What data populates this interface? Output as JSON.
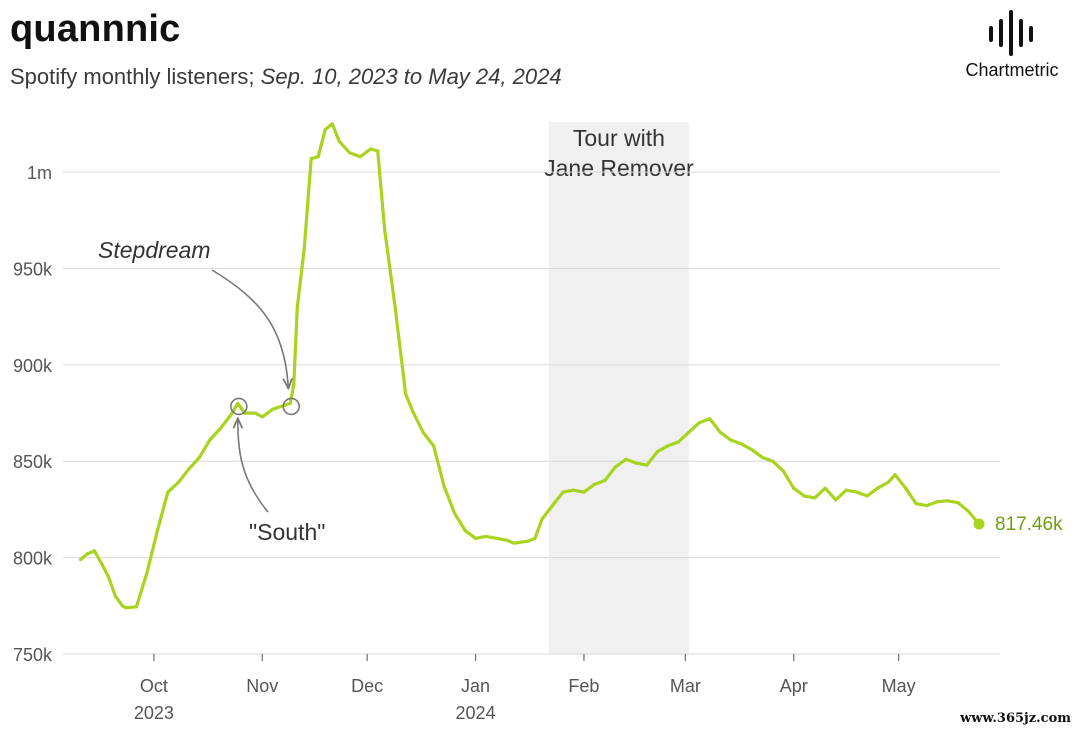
{
  "title": "quannnic",
  "subtitle_prefix": "Spotify monthly listeners; ",
  "subtitle_range": "Sep. 10, 2023 to May 24, 2024",
  "logo": {
    "text": "Chartmetric",
    "icon": "sound-bars-icon"
  },
  "watermark": "www.365jz.com",
  "colors": {
    "line": "#a8d31e",
    "end_label": "#6f9d12",
    "grid": "#d9d9d9",
    "band": "#f0f0f0",
    "annotation": "#777777",
    "tick_text": "#555555"
  },
  "chart_data": {
    "type": "line",
    "title": "quannnic",
    "subtitle": "Spotify monthly listeners; Sep. 10, 2023 to May 24, 2024",
    "xlabel": "",
    "ylabel": "",
    "ylim": [
      750000,
      1026000
    ],
    "xlim": [
      "2023-09-05",
      "2024-05-30"
    ],
    "grid": true,
    "y_ticks": [
      {
        "value": 750000,
        "label": "750k"
      },
      {
        "value": 800000,
        "label": "800k"
      },
      {
        "value": 850000,
        "label": "850k"
      },
      {
        "value": 900000,
        "label": "900k"
      },
      {
        "value": 950000,
        "label": "950k"
      },
      {
        "value": 1000000,
        "label": "1m"
      }
    ],
    "x_ticks": [
      {
        "date": "2023-10-01",
        "label": "Oct",
        "year": "2023"
      },
      {
        "date": "2023-11-01",
        "label": "Nov",
        "year": ""
      },
      {
        "date": "2023-12-01",
        "label": "Dec",
        "year": ""
      },
      {
        "date": "2024-01-01",
        "label": "Jan",
        "year": "2024"
      },
      {
        "date": "2024-02-01",
        "label": "Feb",
        "year": ""
      },
      {
        "date": "2024-03-01",
        "label": "Mar",
        "year": ""
      },
      {
        "date": "2024-04-01",
        "label": "Apr",
        "year": ""
      },
      {
        "date": "2024-05-01",
        "label": "May",
        "year": ""
      }
    ],
    "series": [
      {
        "points": [
          [
            "2023-09-10",
            799000
          ],
          [
            "2023-09-12",
            802000
          ],
          [
            "2023-09-14",
            803500
          ],
          [
            "2023-09-16",
            797000
          ],
          [
            "2023-09-18",
            790000
          ],
          [
            "2023-09-20",
            780000
          ],
          [
            "2023-09-22",
            775000
          ],
          [
            "2023-09-23",
            774000
          ],
          [
            "2023-09-26",
            774500
          ],
          [
            "2023-09-29",
            792000
          ],
          [
            "2023-10-02",
            814000
          ],
          [
            "2023-10-05",
            834000
          ],
          [
            "2023-10-08",
            839000
          ],
          [
            "2023-10-11",
            846000
          ],
          [
            "2023-10-14",
            852000
          ],
          [
            "2023-10-17",
            861000
          ],
          [
            "2023-10-20",
            867000
          ],
          [
            "2023-10-23",
            874000
          ],
          [
            "2023-10-25",
            880000
          ],
          [
            "2023-10-27",
            875000
          ],
          [
            "2023-10-30",
            875000
          ],
          [
            "2023-11-01",
            873000
          ],
          [
            "2023-11-04",
            877000
          ],
          [
            "2023-11-09",
            880000
          ],
          [
            "2023-11-10",
            890000
          ],
          [
            "2023-11-11",
            930000
          ],
          [
            "2023-11-13",
            960000
          ],
          [
            "2023-11-15",
            1007000
          ],
          [
            "2023-11-17",
            1008000
          ],
          [
            "2023-11-19",
            1022000
          ],
          [
            "2023-11-21",
            1025000
          ],
          [
            "2023-11-23",
            1016000
          ],
          [
            "2023-11-26",
            1010000
          ],
          [
            "2023-11-29",
            1008000
          ],
          [
            "2023-12-02",
            1012000
          ],
          [
            "2023-12-04",
            1011000
          ],
          [
            "2023-12-06",
            970000
          ],
          [
            "2023-12-09",
            930000
          ],
          [
            "2023-12-12",
            885000
          ],
          [
            "2023-12-14",
            876000
          ],
          [
            "2023-12-17",
            865000
          ],
          [
            "2023-12-20",
            858000
          ],
          [
            "2023-12-23",
            837000
          ],
          [
            "2023-12-26",
            823000
          ],
          [
            "2023-12-29",
            814000
          ],
          [
            "2024-01-01",
            810000
          ],
          [
            "2024-01-04",
            811000
          ],
          [
            "2024-01-07",
            810000
          ],
          [
            "2024-01-10",
            809000
          ],
          [
            "2024-01-12",
            807500
          ],
          [
            "2024-01-16",
            808500
          ],
          [
            "2024-01-18",
            810000
          ],
          [
            "2024-01-20",
            820000
          ],
          [
            "2024-01-23",
            827000
          ],
          [
            "2024-01-26",
            834000
          ],
          [
            "2024-01-29",
            835000
          ],
          [
            "2024-02-01",
            834000
          ],
          [
            "2024-02-04",
            838000
          ],
          [
            "2024-02-07",
            840000
          ],
          [
            "2024-02-10",
            847000
          ],
          [
            "2024-02-13",
            851000
          ],
          [
            "2024-02-16",
            849000
          ],
          [
            "2024-02-19",
            848000
          ],
          [
            "2024-02-22",
            855000
          ],
          [
            "2024-02-25",
            858000
          ],
          [
            "2024-02-28",
            860000
          ],
          [
            "2024-03-02",
            865000
          ],
          [
            "2024-03-05",
            870000
          ],
          [
            "2024-03-08",
            872000
          ],
          [
            "2024-03-11",
            865000
          ],
          [
            "2024-03-14",
            861000
          ],
          [
            "2024-03-17",
            859000
          ],
          [
            "2024-03-20",
            856000
          ],
          [
            "2024-03-23",
            852000
          ],
          [
            "2024-03-26",
            850000
          ],
          [
            "2024-03-29",
            845000
          ],
          [
            "2024-04-01",
            836000
          ],
          [
            "2024-04-04",
            832000
          ],
          [
            "2024-04-07",
            831000
          ],
          [
            "2024-04-10",
            836000
          ],
          [
            "2024-04-13",
            830000
          ],
          [
            "2024-04-16",
            835000
          ],
          [
            "2024-04-19",
            834000
          ],
          [
            "2024-04-22",
            832000
          ],
          [
            "2024-04-25",
            836000
          ],
          [
            "2024-04-28",
            839000
          ],
          [
            "2024-04-30",
            843000
          ],
          [
            "2024-05-03",
            836000
          ],
          [
            "2024-05-06",
            828000
          ],
          [
            "2024-05-09",
            827000
          ],
          [
            "2024-05-12",
            829000
          ],
          [
            "2024-05-15",
            829500
          ],
          [
            "2024-05-18",
            828500
          ],
          [
            "2024-05-21",
            824000
          ],
          [
            "2024-05-24",
            817460
          ]
        ]
      }
    ],
    "end_label": "817.46k",
    "band": {
      "start": "2024-01-22",
      "end": "2024-03-02",
      "label_lines": [
        "Tour with",
        "Jane Remover"
      ]
    },
    "annotations": [
      {
        "label": "Stepdream",
        "date": "2023-11-09",
        "value": 880000,
        "italic": true
      },
      {
        "label": "\"South\"",
        "date": "2023-10-25",
        "value": 880000,
        "italic": false
      }
    ]
  }
}
